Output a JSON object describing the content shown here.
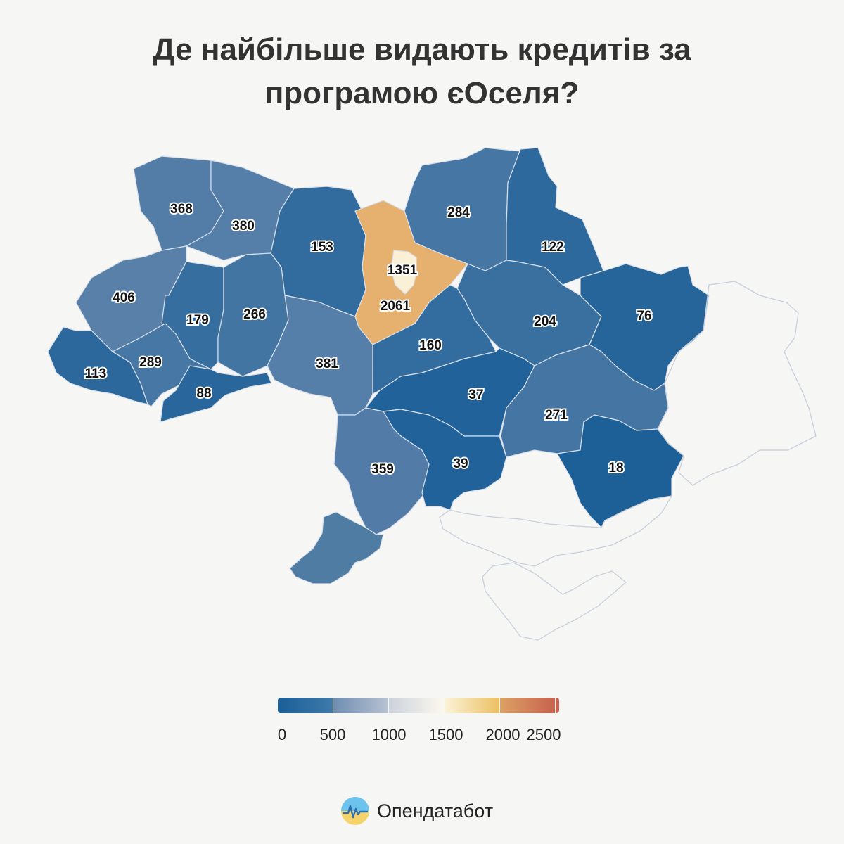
{
  "title": {
    "line1": "Де найбільше видають кредитів за",
    "line2": "програмою єОселя?"
  },
  "chart_data": {
    "type": "choropleth",
    "title": "Де найбільше видають кредитів за програмою єОселя?",
    "regions": [
      {
        "id": "lviv",
        "value": 368
      },
      {
        "id": "volyn",
        "value": 380
      },
      {
        "id": "rivne",
        "value": 153
      },
      {
        "id": "kyiv-oblast",
        "value": 2061
      },
      {
        "id": "kyiv-city",
        "value": 1351
      },
      {
        "id": "chernihiv",
        "value": 284
      },
      {
        "id": "sumy",
        "value": 122
      },
      {
        "id": "ivano-frankivsk",
        "value": 406
      },
      {
        "id": "ternopil",
        "value": 179
      },
      {
        "id": "khmelnytskyi",
        "value": 266
      },
      {
        "id": "zhytomyr",
        "value": 381
      },
      {
        "id": "poltava",
        "value": 204
      },
      {
        "id": "kharkiv",
        "value": 76
      },
      {
        "id": "zakarpattia",
        "value": 113
      },
      {
        "id": "chernivtsi-west",
        "value": 289
      },
      {
        "id": "chernivtsi",
        "value": 88
      },
      {
        "id": "cherkasy",
        "value": 160
      },
      {
        "id": "kirovohrad",
        "value": 37
      },
      {
        "id": "dnipropetrovsk",
        "value": 271
      },
      {
        "id": "vinnytsia",
        "value": 359
      },
      {
        "id": "mykolaiv",
        "value": 39
      },
      {
        "id": "zaporizhzhia",
        "value": 18
      },
      {
        "id": "odesa",
        "value": null
      }
    ],
    "scale": {
      "min": 0,
      "max": 2500,
      "ticks": [
        "0",
        "500",
        "1000",
        "1500",
        "2000",
        "2500"
      ],
      "colors": [
        "#1a5f97",
        "#7b92b3",
        "#fbf6e6",
        "#f2d27c",
        "#c8624f"
      ]
    }
  },
  "brand": {
    "name": "Опендатабот",
    "logo_icon": "opendatabot-logo-icon"
  }
}
